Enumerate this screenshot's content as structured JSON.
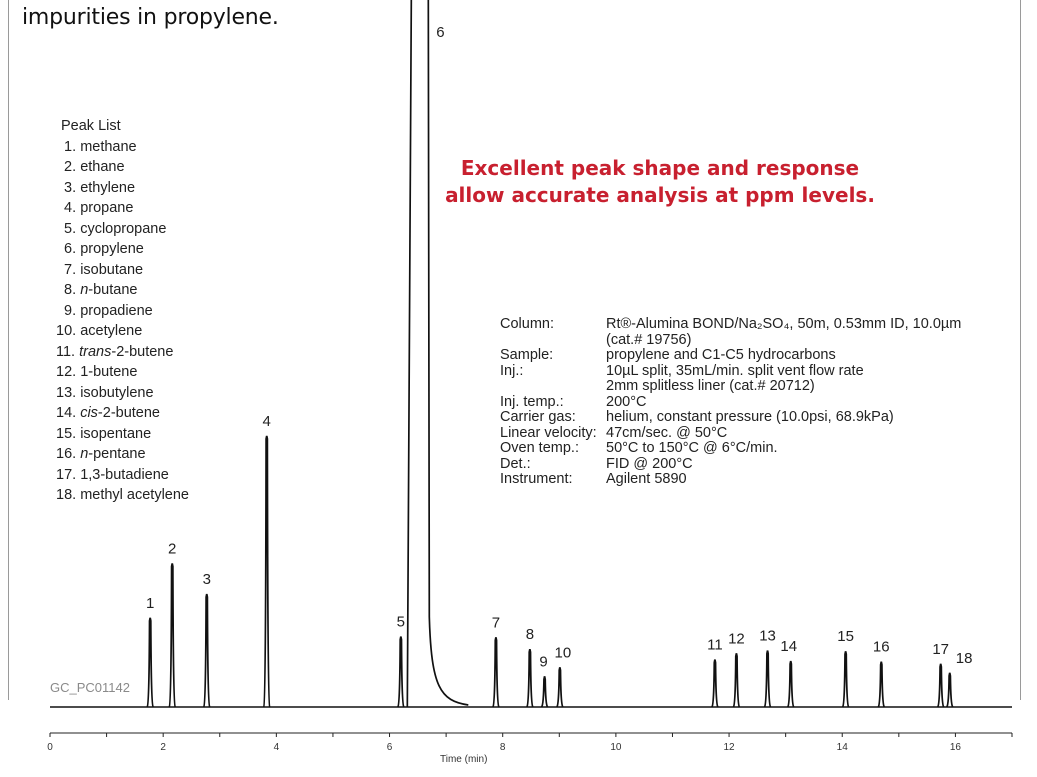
{
  "header": {
    "title": "impurities in propylene."
  },
  "peak_list": {
    "heading": "Peak List",
    "items": [
      {
        "num": "1.",
        "pre": "",
        "ital": "",
        "post": "methane"
      },
      {
        "num": "2.",
        "pre": "",
        "ital": "",
        "post": "ethane"
      },
      {
        "num": "3.",
        "pre": "",
        "ital": "",
        "post": "ethylene"
      },
      {
        "num": "4.",
        "pre": "",
        "ital": "",
        "post": "propane"
      },
      {
        "num": "5.",
        "pre": "",
        "ital": "",
        "post": "cyclopropane"
      },
      {
        "num": "6.",
        "pre": "",
        "ital": "",
        "post": "propylene"
      },
      {
        "num": "7.",
        "pre": "",
        "ital": "",
        "post": "isobutane"
      },
      {
        "num": "8.",
        "pre": "",
        "ital": "n",
        "post": "-butane"
      },
      {
        "num": "9.",
        "pre": "",
        "ital": "",
        "post": "propadiene"
      },
      {
        "num": "10.",
        "pre": "",
        "ital": "",
        "post": "acetylene"
      },
      {
        "num": "11.",
        "pre": "",
        "ital": "trans",
        "post": "-2-butene"
      },
      {
        "num": "12.",
        "pre": "",
        "ital": "",
        "post": "1-butene"
      },
      {
        "num": "13.",
        "pre": "",
        "ital": "",
        "post": "isobutylene"
      },
      {
        "num": "14.",
        "pre": "",
        "ital": "cis",
        "post": "-2-butene"
      },
      {
        "num": "15.",
        "pre": "",
        "ital": "",
        "post": "isopentane"
      },
      {
        "num": "16.",
        "pre": "",
        "ital": "n",
        "post": "-pentane"
      },
      {
        "num": "17.",
        "pre": "",
        "ital": "",
        "post": "1,3-butadiene"
      },
      {
        "num": "18.",
        "pre": "",
        "ital": "",
        "post": "methyl acetylene"
      }
    ]
  },
  "callout": {
    "line1": "Excellent peak shape and response",
    "line2": "allow accurate analysis at ppm levels.",
    "color": "#c8202f"
  },
  "conditions": [
    {
      "key": "Column:",
      "lines": [
        "Rt®-Alumina BOND/Na₂SO₄, 50m, 0.53mm ID, 10.0µm",
        "(cat.# 19756)"
      ]
    },
    {
      "key": "Sample:",
      "lines": [
        "propylene and C1-C5 hydrocarbons"
      ]
    },
    {
      "key": "Inj.:",
      "lines": [
        "10µL split, 35mL/min. split vent flow rate",
        "2mm splitless liner (cat.# 20712)"
      ]
    },
    {
      "key": "Inj. temp.:",
      "lines": [
        "200°C"
      ]
    },
    {
      "key": "Carrier gas:",
      "lines": [
        "helium, constant pressure (10.0psi, 68.9kPa)"
      ]
    },
    {
      "key": "Linear velocity:",
      "lines": [
        "47cm/sec. @ 50°C"
      ]
    },
    {
      "key": "Oven temp.:",
      "lines": [
        "50°C to 150°C @ 6°C/min."
      ]
    },
    {
      "key": "Det.:",
      "lines": [
        "FID @ 200°C"
      ]
    },
    {
      "key": "Instrument:",
      "lines": [
        "Agilent 5890"
      ]
    }
  ],
  "figure_code": "GC_PC01142",
  "chart_data": {
    "type": "line",
    "xlabel": "Time (min)",
    "ylabel": "",
    "xlim": [
      0,
      17
    ],
    "ylim": [
      0,
      100
    ],
    "x_ticks": [
      "0",
      "2",
      "4",
      "6",
      "8",
      "10",
      "12",
      "14",
      "16"
    ],
    "grid": false,
    "line_color": "#111111",
    "peaks": [
      {
        "label": "1",
        "time": 1.77,
        "height": 12.8
      },
      {
        "label": "2",
        "time": 2.16,
        "height": 20.6
      },
      {
        "label": "3",
        "time": 2.77,
        "height": 16.2
      },
      {
        "label": "4",
        "time": 3.83,
        "height": 38.9
      },
      {
        "label": "5",
        "time": 6.2,
        "height": 10.1
      },
      {
        "label": "6",
        "time": 6.65,
        "height": 100,
        "truncated": true
      },
      {
        "label": "7",
        "time": 7.88,
        "height": 10.0
      },
      {
        "label": "8",
        "time": 8.48,
        "height": 8.3
      },
      {
        "label": "9",
        "time": 8.74,
        "height": 4.4
      },
      {
        "label": "10",
        "time": 9.01,
        "height": 5.7
      },
      {
        "label": "11",
        "time": 11.75,
        "height": 6.8
      },
      {
        "label": "12",
        "time": 12.13,
        "height": 7.7
      },
      {
        "label": "13",
        "time": 12.68,
        "height": 8.1
      },
      {
        "label": "14",
        "time": 13.09,
        "height": 6.6
      },
      {
        "label": "15",
        "time": 14.06,
        "height": 8.0
      },
      {
        "label": "16",
        "time": 14.69,
        "height": 6.5
      },
      {
        "label": "17",
        "time": 15.74,
        "height": 6.2
      },
      {
        "label": "18",
        "time": 15.9,
        "height": 4.9
      }
    ]
  }
}
